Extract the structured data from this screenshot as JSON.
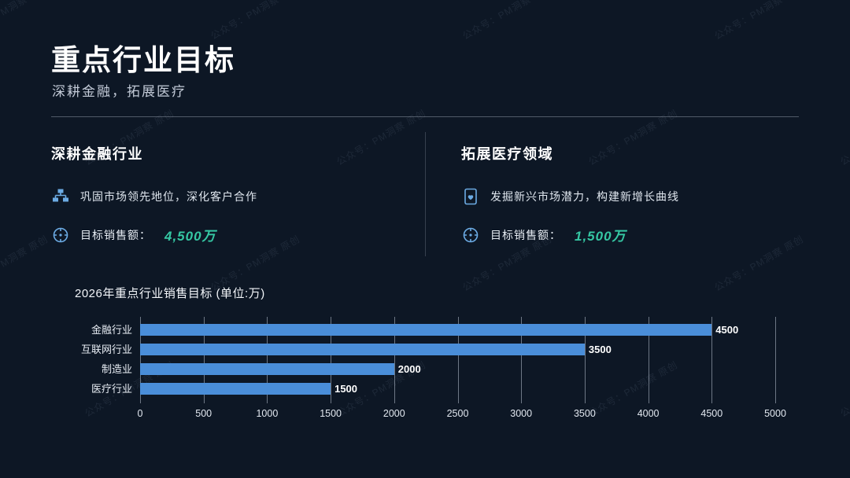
{
  "page": {
    "title": "重点行业目标",
    "subtitle": "深耕金融，拓展医疗"
  },
  "watermark": "公众号：PM洞察 原创",
  "sections": {
    "finance": {
      "heading": "深耕金融行业",
      "point": "巩固市场领先地位，深化客户合作",
      "target_label": "目标销售额：",
      "target_value": "4,500万"
    },
    "medical": {
      "heading": "拓展医疗领域",
      "point": "发掘新兴市场潜力，构建新增长曲线",
      "target_label": "目标销售额：",
      "target_value": "1,500万"
    }
  },
  "chart_data": {
    "type": "bar",
    "orientation": "horizontal",
    "title": "2026年重点行业销售目标 (单位:万)",
    "categories": [
      "金融行业",
      "互联网行业",
      "制造业",
      "医疗行业"
    ],
    "values": [
      4500,
      3500,
      2000,
      1500
    ],
    "xlabel": "",
    "ylabel": "",
    "xlim": [
      0,
      5000
    ],
    "xticks": [
      0,
      500,
      1000,
      1500,
      2000,
      2500,
      3000,
      3500,
      4000,
      4500,
      5000
    ],
    "grid": true,
    "legend": false,
    "bar_color": "#4a8ed9"
  },
  "colors": {
    "background": "#0d1725",
    "accent_teal": "#35c7a3",
    "bar_blue": "#4a8ed9",
    "icon_blue": "#6cabe4"
  }
}
